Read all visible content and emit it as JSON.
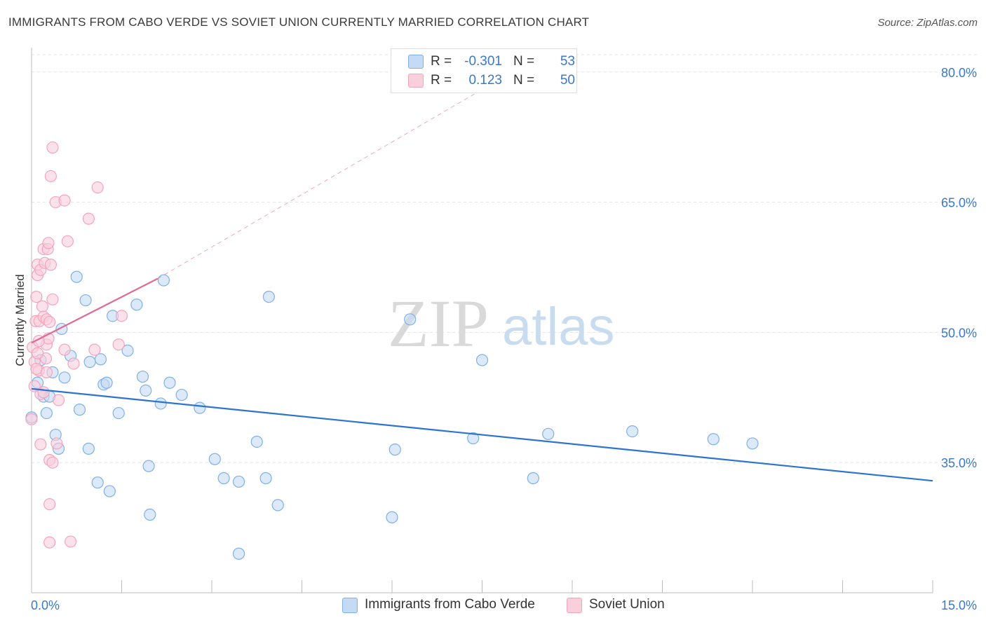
{
  "header": {
    "title": "IMMIGRANTS FROM CABO VERDE VS SOVIET UNION CURRENTLY MARRIED CORRELATION CHART",
    "source": "Source: ZipAtlas.com"
  },
  "watermark": {
    "zip": "ZIP",
    "atlas": "atlas"
  },
  "stats": {
    "r_label": "R =",
    "n_label": "N =",
    "rows": [
      {
        "r": "-0.301",
        "n": "53"
      },
      {
        "r": "0.123",
        "n": "50"
      }
    ]
  },
  "chart_data": {
    "type": "scatter",
    "title": "IMMIGRANTS FROM CABO VERDE VS SOVIET UNION CURRENTLY MARRIED CORRELATION CHART",
    "xlabel": "",
    "ylabel": "Currently Married",
    "xlim": [
      0,
      15
    ],
    "ylim": [
      20,
      82
    ],
    "x_tick_labels": [
      "0.0%",
      "15.0%"
    ],
    "y_ticks": [
      35,
      50,
      65,
      80
    ],
    "y_tick_labels": [
      "35.0%",
      "50.0%",
      "65.0%",
      "80.0%"
    ],
    "grid": true,
    "legend_position": "bottom",
    "series": [
      {
        "name": "Immigrants from Cabo Verde",
        "color": "#7fb0e8",
        "fill": "#c5dbf5",
        "trend_color": "#2b74cf",
        "r": -0.301,
        "n": 53,
        "trend": {
          "x0": 0.0,
          "y0": 43.5,
          "x1": 15.0,
          "y1": 32.9
        },
        "points": [
          [
            0.0,
            40.2
          ],
          [
            0.1,
            44.2
          ],
          [
            0.15,
            46.8
          ],
          [
            0.2,
            42.6
          ],
          [
            0.25,
            40.7
          ],
          [
            0.3,
            42.6
          ],
          [
            0.35,
            45.4
          ],
          [
            0.4,
            38.2
          ],
          [
            0.45,
            36.6
          ],
          [
            0.5,
            50.4
          ],
          [
            0.55,
            44.8
          ],
          [
            0.65,
            47.3
          ],
          [
            0.8,
            41.1
          ],
          [
            0.9,
            53.7
          ],
          [
            0.95,
            36.6
          ],
          [
            0.75,
            56.4
          ],
          [
            0.97,
            46.6
          ],
          [
            1.1,
            32.7
          ],
          [
            1.15,
            46.9
          ],
          [
            1.2,
            44.0
          ],
          [
            1.25,
            44.2
          ],
          [
            1.3,
            31.7
          ],
          [
            1.35,
            51.9
          ],
          [
            1.45,
            40.7
          ],
          [
            1.6,
            47.9
          ],
          [
            1.75,
            53.2
          ],
          [
            1.85,
            44.9
          ],
          [
            1.9,
            43.3
          ],
          [
            1.95,
            34.6
          ],
          [
            1.97,
            29.0
          ],
          [
            2.15,
            41.8
          ],
          [
            2.2,
            56.0
          ],
          [
            2.3,
            44.2
          ],
          [
            2.5,
            42.8
          ],
          [
            2.8,
            41.3
          ],
          [
            3.05,
            35.4
          ],
          [
            3.2,
            33.2
          ],
          [
            3.45,
            32.8
          ],
          [
            3.45,
            24.5
          ],
          [
            3.75,
            37.4
          ],
          [
            3.9,
            33.2
          ],
          [
            3.95,
            54.1
          ],
          [
            4.1,
            30.1
          ],
          [
            6.0,
            28.7
          ],
          [
            6.05,
            36.5
          ],
          [
            6.3,
            51.5
          ],
          [
            7.35,
            37.8
          ],
          [
            7.5,
            46.8
          ],
          [
            8.35,
            33.2
          ],
          [
            8.6,
            38.3
          ],
          [
            10.0,
            38.6
          ],
          [
            11.35,
            37.7
          ],
          [
            12.0,
            37.2
          ]
        ]
      },
      {
        "name": "Soviet Union",
        "color": "#f3a4bd",
        "fill": "#f9cfdc",
        "trend_color": "#e06a93",
        "r": 0.123,
        "n": 50,
        "trend": {
          "x0": 0.0,
          "y0": 48.8,
          "x1": 2.1,
          "y1": 56.2
        },
        "trend_extension": {
          "x0": 2.1,
          "y0": 56.2,
          "x1": 8.0,
          "y1": 80.0
        },
        "points": [
          [
            0.0,
            40.0
          ],
          [
            0.02,
            48.3
          ],
          [
            0.05,
            46.6
          ],
          [
            0.07,
            51.3
          ],
          [
            0.08,
            54.1
          ],
          [
            0.1,
            56.6
          ],
          [
            0.1,
            57.8
          ],
          [
            0.12,
            45.6
          ],
          [
            0.13,
            51.3
          ],
          [
            0.15,
            57.2
          ],
          [
            0.15,
            42.9
          ],
          [
            0.15,
            37.1
          ],
          [
            0.18,
            53.0
          ],
          [
            0.2,
            51.8
          ],
          [
            0.2,
            59.6
          ],
          [
            0.22,
            58.0
          ],
          [
            0.24,
            47.0
          ],
          [
            0.25,
            45.4
          ],
          [
            0.25,
            48.6
          ],
          [
            0.25,
            51.5
          ],
          [
            0.27,
            59.6
          ],
          [
            0.28,
            60.3
          ],
          [
            0.3,
            51.2
          ],
          [
            0.3,
            30.2
          ],
          [
            0.3,
            25.8
          ],
          [
            0.3,
            35.3
          ],
          [
            0.32,
            57.8
          ],
          [
            0.32,
            68.0
          ],
          [
            0.35,
            71.3
          ],
          [
            0.35,
            53.8
          ],
          [
            0.35,
            35.0
          ],
          [
            0.4,
            65.0
          ],
          [
            0.42,
            37.2
          ],
          [
            0.45,
            42.2
          ],
          [
            0.55,
            65.2
          ],
          [
            0.6,
            60.5
          ],
          [
            0.55,
            48.0
          ],
          [
            0.65,
            25.9
          ],
          [
            0.7,
            46.4
          ],
          [
            0.95,
            63.1
          ],
          [
            1.05,
            48.0
          ],
          [
            1.1,
            66.7
          ],
          [
            1.45,
            48.6
          ],
          [
            1.5,
            51.9
          ],
          [
            0.05,
            43.8
          ],
          [
            0.1,
            47.6
          ],
          [
            0.2,
            43.1
          ],
          [
            0.28,
            49.3
          ],
          [
            0.12,
            49.0
          ],
          [
            0.08,
            45.8
          ]
        ]
      }
    ]
  }
}
